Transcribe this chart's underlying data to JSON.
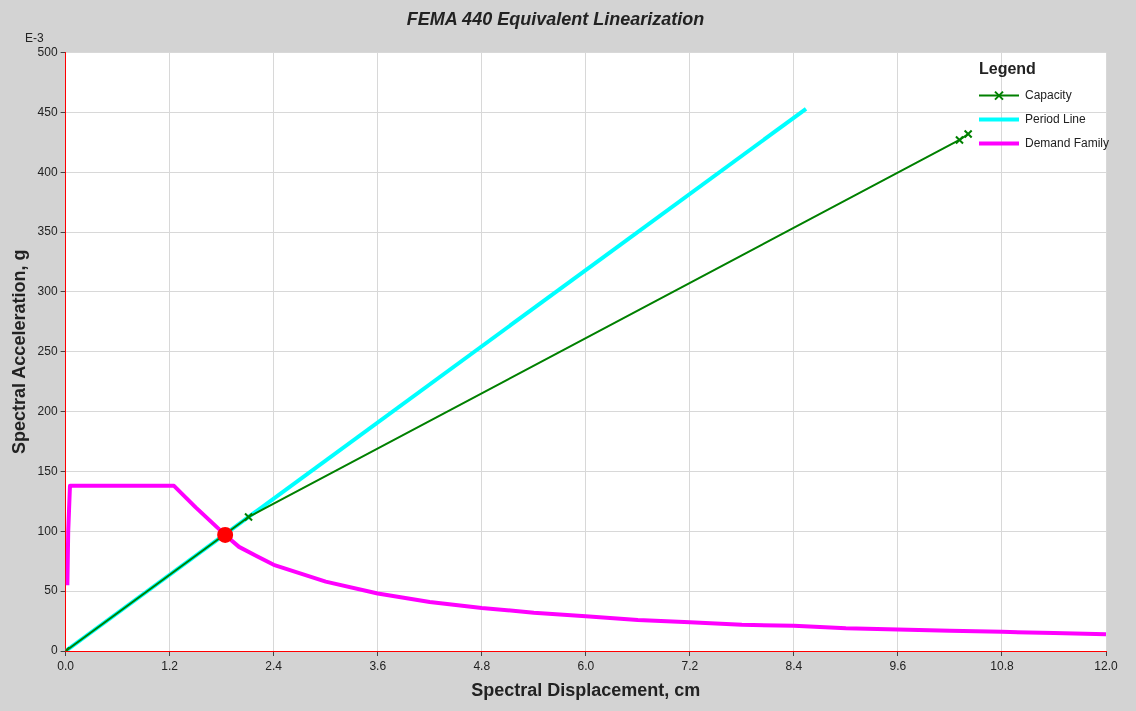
{
  "chart_data": {
    "type": "line",
    "title": "FEMA 440 Equivalent Linearization",
    "xlabel": "Spectral Displacement, cm",
    "ylabel": "Spectral Acceleration, g",
    "legend_title": "Legend",
    "annotations": [
      "E-3"
    ],
    "xlim": [
      0,
      12
    ],
    "xticks": [
      {
        "value": 0,
        "label": "0.0"
      },
      {
        "value": 1.2,
        "label": "1.2"
      },
      {
        "value": 2.4,
        "label": "2.4"
      },
      {
        "value": 3.6,
        "label": "3.6"
      },
      {
        "value": 4.8,
        "label": "4.8"
      },
      {
        "value": 6,
        "label": "6.0"
      },
      {
        "value": 7.2,
        "label": "7.2"
      },
      {
        "value": 8.4,
        "label": "8.4"
      },
      {
        "value": 9.6,
        "label": "9.6"
      },
      {
        "value": 10.8,
        "label": "10.8"
      },
      {
        "value": 12,
        "label": "12.0"
      }
    ],
    "ylim": [
      0,
      500
    ],
    "yticks": [
      0,
      50,
      100,
      150,
      200,
      250,
      300,
      350,
      400,
      450,
      500
    ],
    "grid": true,
    "legend": "top right",
    "series": [
      {
        "name": "Capacity",
        "color": "#008000",
        "marker": "cross",
        "x": [
          0,
          2.11,
          10.31,
          10.41
        ],
        "values": [
          0,
          112,
          427,
          432
        ]
      },
      {
        "name": "Period Line",
        "color": "#00ffff",
        "marker": "none",
        "x": [
          0,
          8.54
        ],
        "values": [
          0,
          453
        ]
      },
      {
        "name": "Demand Family",
        "color": "#ff00ff",
        "marker": "none",
        "x": [
          0.02,
          0.03,
          0.05,
          0.6,
          1.25,
          1.5,
          1.84,
          2.0,
          2.4,
          3.0,
          3.6,
          4.2,
          4.8,
          5.4,
          6.0,
          6.6,
          7.2,
          7.8,
          8.4,
          9.0,
          9.6,
          10.2,
          10.8,
          11.4,
          12.0
        ],
        "values": [
          55,
          100,
          138,
          138,
          138,
          120,
          97,
          87,
          72,
          58,
          48,
          41,
          36,
          32,
          29,
          26,
          24,
          22,
          21,
          19,
          18,
          17,
          16,
          15,
          14
        ]
      },
      {
        "type": "scatter",
        "color": "#ff0000",
        "marker": "circle",
        "x": [
          1.84
        ],
        "values": [
          97
        ]
      }
    ]
  }
}
